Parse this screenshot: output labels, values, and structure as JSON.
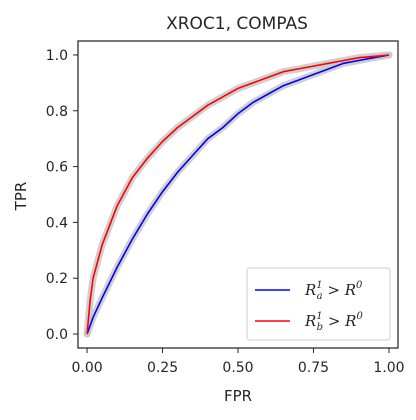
{
  "chart_data": {
    "type": "line",
    "title": "XROC1, COMPAS",
    "xlabel": "FPR",
    "ylabel": "TPR",
    "xlim": [
      -0.03,
      1.03
    ],
    "ylim": [
      -0.05,
      1.05
    ],
    "xticks": [
      "0.00",
      "0.25",
      "0.50",
      "0.75",
      "1.00"
    ],
    "xtick_values": [
      0,
      0.25,
      0.5,
      0.75,
      1.0
    ],
    "yticks": [
      "0.0",
      "0.2",
      "0.4",
      "0.6",
      "0.8",
      "1.0"
    ],
    "ytick_values": [
      0,
      0.2,
      0.4,
      0.6,
      0.8,
      1.0
    ],
    "grid": false,
    "legend_position": "lower-right",
    "band_color": "#c8c8c8",
    "series": [
      {
        "name": "R_a^1 > R^0",
        "legend": {
          "base": "R",
          "sub": "a",
          "sup": "1",
          "rest": " > R",
          "rest_sup": "0"
        },
        "color": "#0000ff",
        "x": [
          0.0,
          0.02,
          0.05,
          0.1,
          0.15,
          0.2,
          0.25,
          0.3,
          0.35,
          0.4,
          0.45,
          0.5,
          0.55,
          0.6,
          0.65,
          0.7,
          0.75,
          0.8,
          0.85,
          0.9,
          0.95,
          1.0
        ],
        "y": [
          0.0,
          0.06,
          0.13,
          0.24,
          0.34,
          0.43,
          0.51,
          0.58,
          0.64,
          0.7,
          0.74,
          0.79,
          0.83,
          0.86,
          0.89,
          0.91,
          0.93,
          0.95,
          0.97,
          0.98,
          0.99,
          1.0
        ]
      },
      {
        "name": "R_b^1 > R^0",
        "legend": {
          "base": "R",
          "sub": "b",
          "sup": "1",
          "rest": " > R",
          "rest_sup": "0"
        },
        "color": "#ff0000",
        "x": [
          0.0,
          0.01,
          0.02,
          0.05,
          0.1,
          0.15,
          0.2,
          0.25,
          0.3,
          0.35,
          0.4,
          0.45,
          0.5,
          0.55,
          0.6,
          0.65,
          0.7,
          0.75,
          0.8,
          0.85,
          0.9,
          0.95,
          1.0
        ],
        "y": [
          0.0,
          0.12,
          0.2,
          0.32,
          0.46,
          0.56,
          0.63,
          0.69,
          0.74,
          0.78,
          0.82,
          0.85,
          0.88,
          0.9,
          0.92,
          0.94,
          0.95,
          0.96,
          0.97,
          0.98,
          0.99,
          0.995,
          1.0
        ]
      }
    ]
  }
}
